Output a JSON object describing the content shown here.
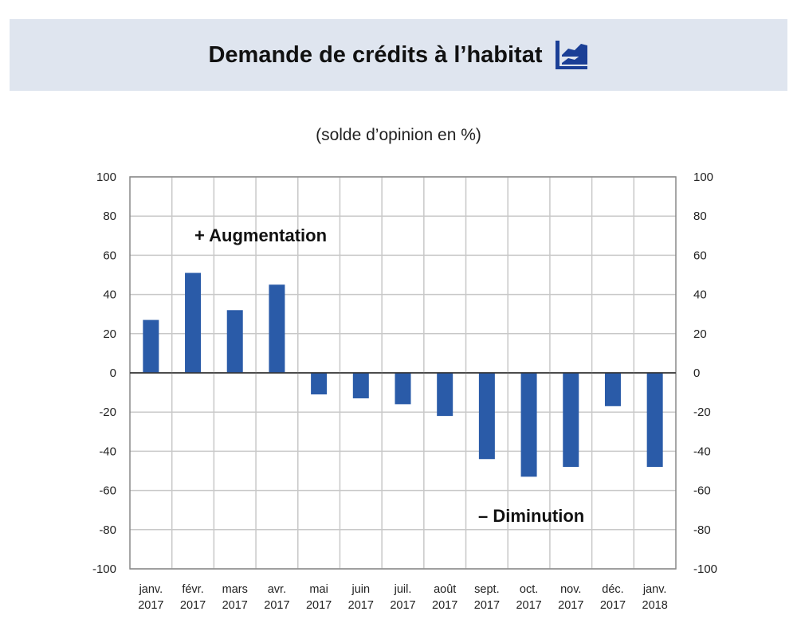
{
  "title": "Demande de crédits à l’habitat",
  "title_icon": "line-area-chart-icon",
  "chart_data": {
    "type": "bar",
    "subtitle": "(solde d’opinion en %)",
    "categories": [
      [
        "janv.",
        "2017"
      ],
      [
        "févr.",
        "2017"
      ],
      [
        "mars",
        "2017"
      ],
      [
        "avr.",
        "2017"
      ],
      [
        "mai",
        "2017"
      ],
      [
        "juin",
        "2017"
      ],
      [
        "juil.",
        "2017"
      ],
      [
        "août",
        "2017"
      ],
      [
        "sept.",
        "2017"
      ],
      [
        "oct.",
        "2017"
      ],
      [
        "nov.",
        "2017"
      ],
      [
        "déc.",
        "2017"
      ],
      [
        "janv.",
        "2018"
      ]
    ],
    "values": [
      27,
      51,
      32,
      45,
      -11,
      -13,
      -16,
      -22,
      -44,
      -53,
      -48,
      -17,
      -48
    ],
    "ylim": [
      -100,
      100
    ],
    "yticks": [
      100,
      80,
      60,
      40,
      20,
      0,
      -20,
      -40,
      -60,
      -80,
      -100
    ],
    "y_axis_both_sides": true,
    "grid": true,
    "bar_color": "#2a5ba8",
    "annotations": {
      "positive": "+ Augmentation",
      "negative": "– Diminution"
    }
  }
}
